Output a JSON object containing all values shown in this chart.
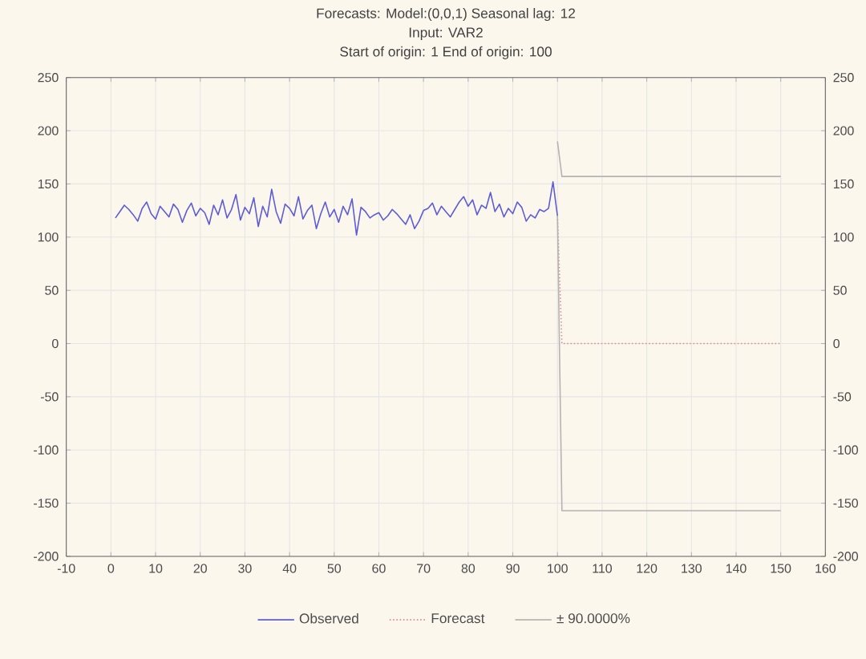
{
  "chart_data": {
    "type": "line",
    "title": "Forecasts: Model:(0,0,1) Seasonal lag: 12",
    "subtitle": "Input: VAR2",
    "annotations": [
      "Start of origin: 1    End of origin: 100"
    ],
    "xlim": [
      -10,
      160
    ],
    "xticks": [
      -10,
      0,
      10,
      20,
      30,
      40,
      50,
      60,
      70,
      80,
      90,
      100,
      110,
      120,
      130,
      140,
      150,
      160
    ],
    "ylim": [
      -200,
      250
    ],
    "yticks": [
      -200,
      -150,
      -100,
      -50,
      0,
      50,
      100,
      150,
      200,
      250
    ],
    "y2lim": [
      -200,
      250
    ],
    "y2ticks": [
      -200,
      -150,
      -100,
      -50,
      0,
      50,
      100,
      150,
      200,
      250
    ],
    "grid": true,
    "legend": "bottom",
    "marker": "none",
    "series": [
      {
        "name": "Observed",
        "color": "#5c5cd6",
        "line_style": "solid",
        "x": [
          1,
          2,
          3,
          4,
          5,
          6,
          7,
          8,
          9,
          10,
          11,
          12,
          13,
          14,
          15,
          16,
          17,
          18,
          19,
          20,
          21,
          22,
          23,
          24,
          25,
          26,
          27,
          28,
          29,
          30,
          31,
          32,
          33,
          34,
          35,
          36,
          37,
          38,
          39,
          40,
          41,
          42,
          43,
          44,
          45,
          46,
          47,
          48,
          49,
          50,
          51,
          52,
          53,
          54,
          55,
          56,
          57,
          58,
          59,
          60,
          61,
          62,
          63,
          64,
          65,
          66,
          67,
          68,
          69,
          70,
          71,
          72,
          73,
          74,
          75,
          76,
          77,
          78,
          79,
          80,
          81,
          82,
          83,
          84,
          85,
          86,
          87,
          88,
          89,
          90,
          91,
          92,
          93,
          94,
          95,
          96,
          97,
          98,
          99,
          100
        ],
        "values": [
          118,
          124,
          130,
          126,
          121,
          115,
          127,
          133,
          122,
          117,
          129,
          124,
          119,
          131,
          126,
          114,
          125,
          132,
          120,
          127,
          123,
          112,
          130,
          121,
          135,
          118,
          126,
          140,
          116,
          128,
          122,
          137,
          110,
          129,
          119,
          145,
          124,
          113,
          131,
          127,
          120,
          138,
          117,
          125,
          130,
          108,
          122,
          133,
          119,
          126,
          114,
          129,
          121,
          136,
          102,
          128,
          124,
          118,
          121,
          123,
          116,
          120,
          126,
          122,
          117,
          112,
          121,
          108,
          115,
          125,
          127,
          132,
          121,
          129,
          124,
          119,
          126,
          133,
          138,
          129,
          135,
          121,
          130,
          127,
          142,
          124,
          131,
          119,
          127,
          122,
          133,
          128,
          115,
          121,
          118,
          126,
          124,
          127,
          152,
          120
        ]
      },
      {
        "name": "Forecast",
        "color": "#d98c8c",
        "line_style": "dotted",
        "x": [
          100,
          101,
          110,
          120,
          130,
          140,
          150
        ],
        "values": [
          120,
          0,
          0,
          0,
          0,
          0,
          0
        ]
      },
      {
        "name": "± 90.0000%",
        "color": "#b4b4b4",
        "line_style": "solid",
        "x": [
          100,
          101,
          110,
          120,
          130,
          140,
          150
        ],
        "values": [
          190,
          157,
          157,
          157,
          157,
          157,
          157
        ]
      },
      {
        "color": "#b4b4b4",
        "line_style": "solid",
        "x": [
          100,
          101,
          110,
          120,
          130,
          140,
          150
        ],
        "values": [
          120,
          -157,
          -157,
          -157,
          -157,
          -157,
          -157
        ]
      }
    ]
  }
}
